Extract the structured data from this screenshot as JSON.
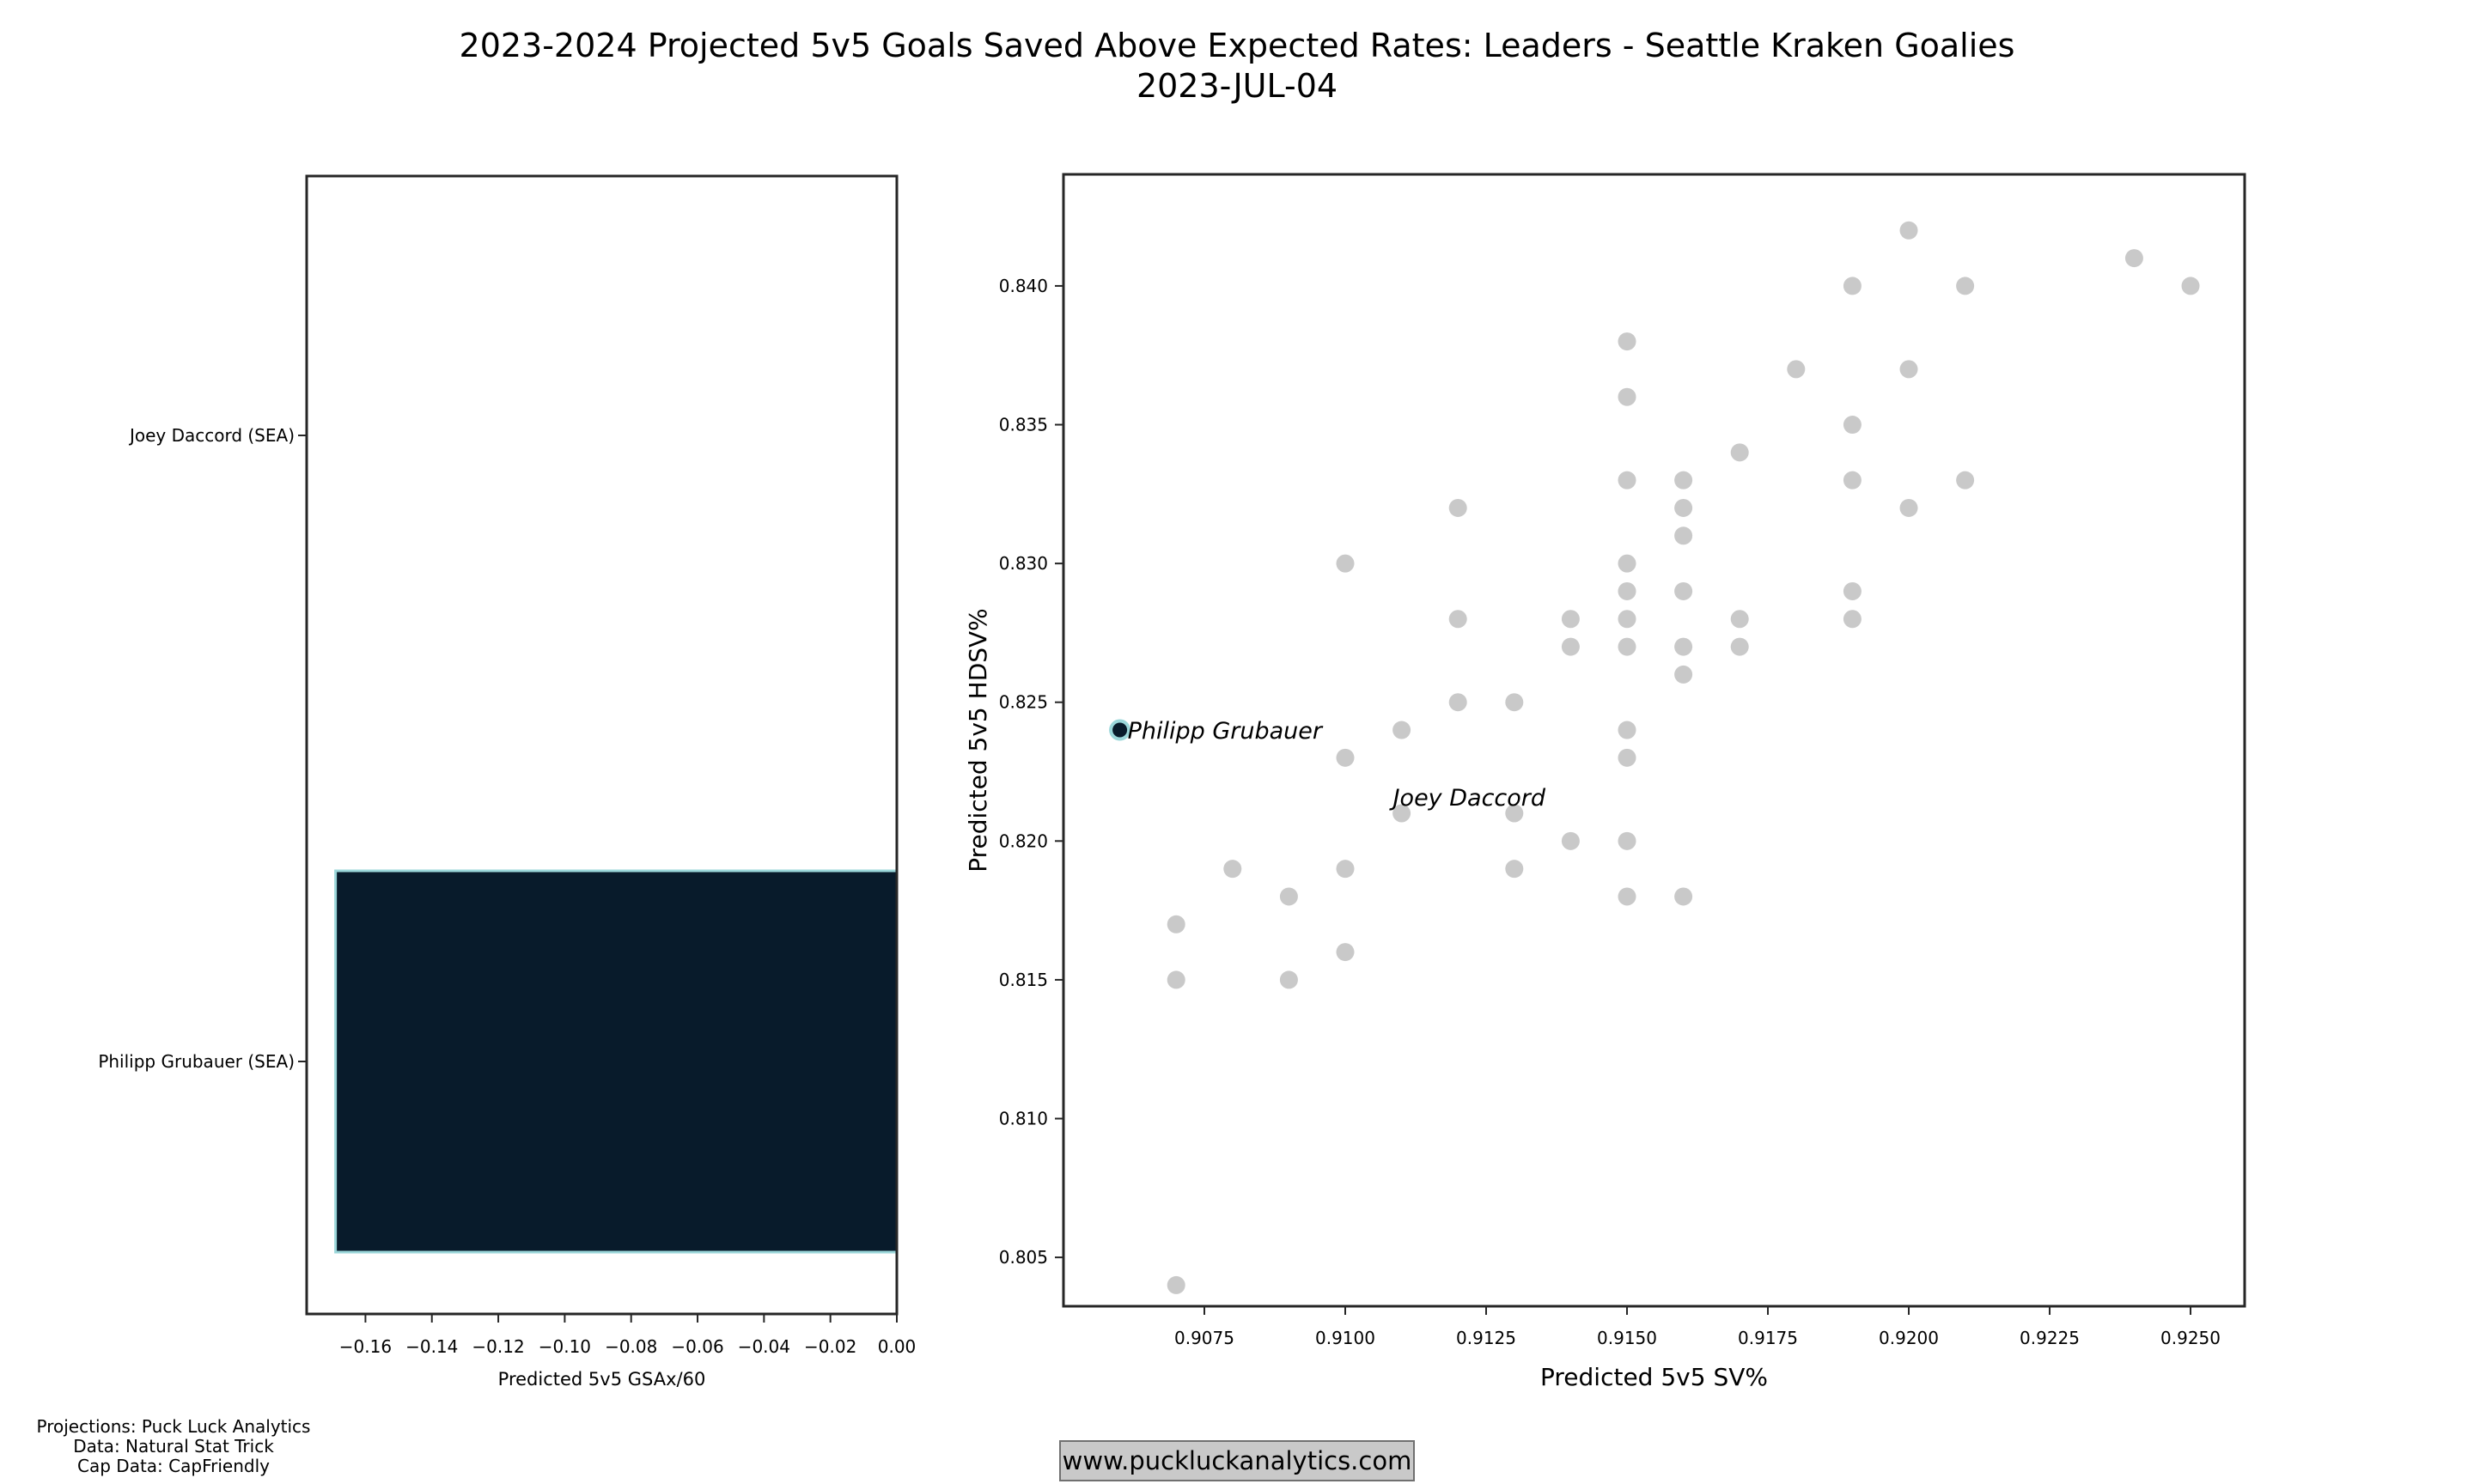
{
  "title": {
    "line1": "2023-2024 Projected 5v5 Goals Saved Above Expected Rates: Leaders - Seattle Kraken Goalies",
    "line2": "2023-JUL-04"
  },
  "credits": {
    "line1": "Projections: Puck Luck Analytics",
    "line2": "Data: Natural Stat Trick",
    "line3": "Cap Data: CapFriendly"
  },
  "watermark_text": "www.puckluckanalytics.com",
  "colors": {
    "highlight_fill": "#081b2b",
    "highlight_edge": "#9bd7da",
    "point_gray": "#c9c9c9",
    "spine": "#262626",
    "text": "#000000",
    "watermark_bg": "#c9c9c9",
    "watermark_border": "#707070"
  },
  "chart_data": [
    {
      "type": "bar",
      "orientation": "horizontal",
      "title": "",
      "xlabel": "Predicted 5v5 GSAx/60",
      "ylabel": "",
      "categories": [
        "Joey Daccord (SEA)",
        "Philipp Grubauer (SEA)"
      ],
      "values": [
        0.0,
        -0.169
      ],
      "xticks": [
        -0.16,
        -0.14,
        -0.12,
        -0.1,
        -0.08,
        -0.06,
        -0.04,
        -0.02,
        0.0
      ],
      "xlim": [
        -0.1777,
        0.0
      ],
      "grid": false,
      "legend_position": "none"
    },
    {
      "type": "scatter",
      "title": "",
      "xlabel": "Predicted 5v5 SV%",
      "ylabel": "Predicted 5v5 HDSV%",
      "xticks": [
        0.9075,
        0.91,
        0.9125,
        0.915,
        0.9175,
        0.92,
        0.9225,
        0.925
      ],
      "yticks": [
        0.805,
        0.81,
        0.815,
        0.82,
        0.825,
        0.83,
        0.835,
        0.84
      ],
      "xlim": [
        0.905,
        0.92596
      ],
      "ylim": [
        0.80324,
        0.84402
      ],
      "grid": false,
      "legend_position": "none",
      "points": [
        [
          0.92,
          0.842
        ],
        [
          0.924,
          0.841
        ],
        [
          0.919,
          0.84
        ],
        [
          0.921,
          0.84
        ],
        [
          0.925,
          0.84
        ],
        [
          0.915,
          0.838
        ],
        [
          0.918,
          0.837
        ],
        [
          0.92,
          0.837
        ],
        [
          0.915,
          0.836
        ],
        [
          0.919,
          0.835
        ],
        [
          0.917,
          0.834
        ],
        [
          0.915,
          0.833
        ],
        [
          0.916,
          0.833
        ],
        [
          0.919,
          0.833
        ],
        [
          0.921,
          0.833
        ],
        [
          0.912,
          0.832
        ],
        [
          0.916,
          0.832
        ],
        [
          0.92,
          0.832
        ],
        [
          0.916,
          0.831
        ],
        [
          0.91,
          0.83
        ],
        [
          0.915,
          0.83
        ],
        [
          0.915,
          0.829
        ],
        [
          0.916,
          0.829
        ],
        [
          0.919,
          0.829
        ],
        [
          0.912,
          0.828
        ],
        [
          0.914,
          0.828
        ],
        [
          0.915,
          0.828
        ],
        [
          0.917,
          0.828
        ],
        [
          0.919,
          0.828
        ],
        [
          0.914,
          0.827
        ],
        [
          0.915,
          0.827
        ],
        [
          0.916,
          0.827
        ],
        [
          0.917,
          0.827
        ],
        [
          0.916,
          0.826
        ],
        [
          0.912,
          0.825
        ],
        [
          0.913,
          0.825
        ],
        [
          0.911,
          0.824
        ],
        [
          0.915,
          0.824
        ],
        [
          0.91,
          0.823
        ],
        [
          0.915,
          0.823
        ],
        [
          0.913,
          0.821
        ],
        [
          0.914,
          0.82
        ],
        [
          0.915,
          0.82
        ],
        [
          0.908,
          0.819
        ],
        [
          0.91,
          0.819
        ],
        [
          0.913,
          0.819
        ],
        [
          0.909,
          0.818
        ],
        [
          0.915,
          0.818
        ],
        [
          0.916,
          0.818
        ],
        [
          0.907,
          0.817
        ],
        [
          0.91,
          0.816
        ],
        [
          0.907,
          0.815
        ],
        [
          0.909,
          0.815
        ],
        [
          0.907,
          0.804
        ]
      ],
      "labeled_points": [
        {
          "label": "Philipp Grubauer",
          "x": 0.906,
          "y": 0.824,
          "highlighted": true
        },
        {
          "label": "Joey Daccord",
          "x": 0.911,
          "y": 0.821,
          "highlighted": false
        }
      ]
    }
  ]
}
